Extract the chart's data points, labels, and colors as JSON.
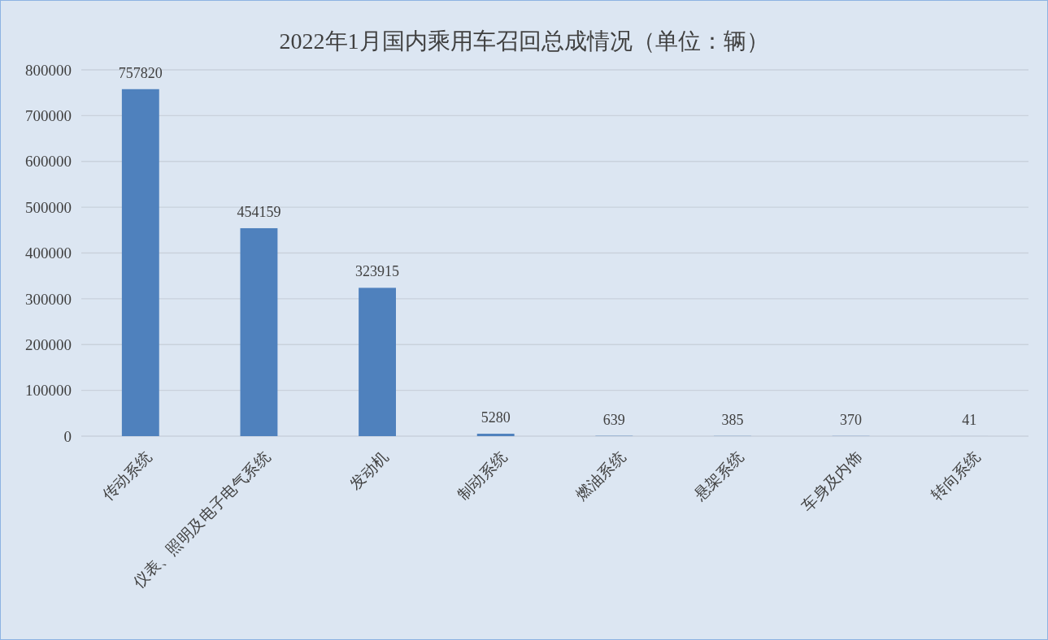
{
  "chart_data": {
    "type": "bar",
    "title": "2022年1月国内乘用车召回总成情况（单位：辆）",
    "categories": [
      "传动系统",
      "仪表、照明及电子电气系统",
      "发动机",
      "制动系统",
      "燃油系统",
      "悬架系统",
      "车身及内饰",
      "转向系统"
    ],
    "values": [
      757820,
      454159,
      323915,
      5280,
      639,
      385,
      370,
      41
    ],
    "color": "#4f81bd",
    "ylim": [
      0,
      800000
    ],
    "yticks": [
      0,
      100000,
      200000,
      300000,
      400000,
      500000,
      600000,
      700000,
      800000
    ],
    "grid": "y",
    "data_labels": true
  }
}
